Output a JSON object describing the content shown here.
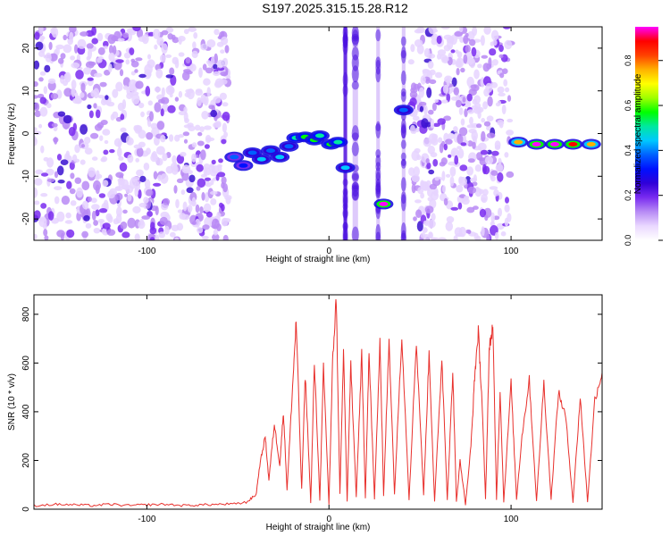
{
  "title": "S197.2025.315.15.28.R12",
  "colors": {
    "snr_line": "#e8302c",
    "spectro_bg_speckle": "#9b5cf0",
    "colormap": [
      "#ffffff",
      "#ead8ff",
      "#b88cf5",
      "#7a2cf0",
      "#3000d8",
      "#0010ff",
      "#0060ff",
      "#00c8ff",
      "#00e8a0",
      "#00ff00",
      "#a0ff00",
      "#ffff00",
      "#ffb000",
      "#ff4000",
      "#ff0000",
      "#ff00ff"
    ]
  },
  "chart_data": [
    {
      "type": "heatmap",
      "name": "spectrogram",
      "xlabel": "Height of straight line (km)",
      "ylabel": "Frequency (Hz)",
      "xlim": [
        -162,
        150
      ],
      "ylim": [
        -25,
        25
      ],
      "xticks": [
        -100,
        0,
        100
      ],
      "yticks": [
        -20,
        -10,
        0,
        10,
        20
      ],
      "grid": false,
      "noise_regions_km": [
        [
          -162,
          -55
        ],
        [
          80,
          100
        ]
      ],
      "noise_dense_band_km": [
        45,
        80
      ],
      "vertical_streaks_km": [
        [
          8,
          10
        ],
        [
          13,
          16
        ],
        [
          26,
          28
        ],
        [
          40,
          42
        ]
      ],
      "signal_track": [
        {
          "x": -52,
          "f": -5.5,
          "a": 0.35
        },
        {
          "x": -47,
          "f": -7.5,
          "a": 0.3
        },
        {
          "x": -42,
          "f": -4.5,
          "a": 0.4
        },
        {
          "x": -37,
          "f": -6.0,
          "a": 0.45
        },
        {
          "x": -32,
          "f": -4.0,
          "a": 0.4
        },
        {
          "x": -27,
          "f": -5.5,
          "a": 0.45
        },
        {
          "x": -22,
          "f": -3.0,
          "a": 0.4
        },
        {
          "x": -18,
          "f": -1.0,
          "a": 0.5
        },
        {
          "x": -13,
          "f": -0.8,
          "a": 0.55
        },
        {
          "x": -8,
          "f": -1.5,
          "a": 0.55
        },
        {
          "x": -5,
          "f": -0.5,
          "a": 0.5
        },
        {
          "x": 1,
          "f": -2.5,
          "a": 0.55
        },
        {
          "x": 5,
          "f": -2.0,
          "a": 0.5
        },
        {
          "x": 9,
          "f": -8.0,
          "a": 0.45
        },
        {
          "x": 30,
          "f": -16.5,
          "a": 0.95
        },
        {
          "x": 41,
          "f": 5.5,
          "a": 0.4
        },
        {
          "x": 104,
          "f": -2.0,
          "a": 0.75
        },
        {
          "x": 114,
          "f": -2.5,
          "a": 0.95
        },
        {
          "x": 124,
          "f": -2.5,
          "a": 0.95
        },
        {
          "x": 134,
          "f": -2.5,
          "a": 0.9
        },
        {
          "x": 144,
          "f": -2.5,
          "a": 0.75
        }
      ],
      "colorbar": {
        "label": "Normalized spectral amplitude",
        "range": [
          0,
          0.95
        ],
        "ticks": [
          0.0,
          0.2,
          0.4,
          0.6,
          0.8
        ]
      }
    },
    {
      "type": "line",
      "name": "snr",
      "xlabel": "Height of straight line (km)",
      "ylabel": "SNR (10 * v/v)",
      "xlim": [
        -162,
        150
      ],
      "ylim": [
        0,
        880
      ],
      "xticks": [
        -100,
        0,
        100
      ],
      "yticks": [
        0,
        200,
        400,
        600,
        800
      ],
      "grid": false,
      "series": [
        {
          "x": [
            -162,
            -150,
            -140,
            -130,
            -120,
            -110,
            -100,
            -90,
            -80,
            -70,
            -60,
            -50,
            -45,
            -40,
            -38,
            -35,
            -33,
            -30,
            -27,
            -25,
            -23,
            -20,
            -18,
            -15,
            -13,
            -10,
            -8,
            -5,
            -3,
            0,
            2,
            4,
            6,
            8,
            10,
            12,
            15,
            18,
            20,
            22,
            25,
            28,
            30,
            33,
            36,
            40,
            44,
            48,
            52,
            55,
            58,
            62,
            65,
            68,
            70,
            72,
            75,
            78,
            80,
            82,
            84,
            86,
            88,
            90,
            92,
            94,
            96,
            100,
            103,
            106,
            110,
            114,
            118,
            122,
            126,
            130,
            134,
            138,
            142,
            146,
            150
          ],
          "y": [
            15,
            20,
            18,
            15,
            20,
            15,
            18,
            20,
            15,
            18,
            20,
            22,
            30,
            60,
            180,
            300,
            120,
            350,
            180,
            400,
            80,
            500,
            770,
            80,
            550,
            30,
            600,
            40,
            580,
            20,
            600,
            870,
            60,
            640,
            30,
            600,
            50,
            640,
            40,
            650,
            40,
            700,
            50,
            700,
            60,
            720,
            40,
            690,
            60,
            640,
            30,
            620,
            40,
            560,
            30,
            200,
            20,
            260,
            540,
            730,
            450,
            40,
            650,
            760,
            40,
            480,
            30,
            520,
            40,
            300,
            530,
            30,
            520,
            40,
            480,
            380,
            30,
            460,
            30,
            450,
            560
          ]
        }
      ]
    }
  ]
}
